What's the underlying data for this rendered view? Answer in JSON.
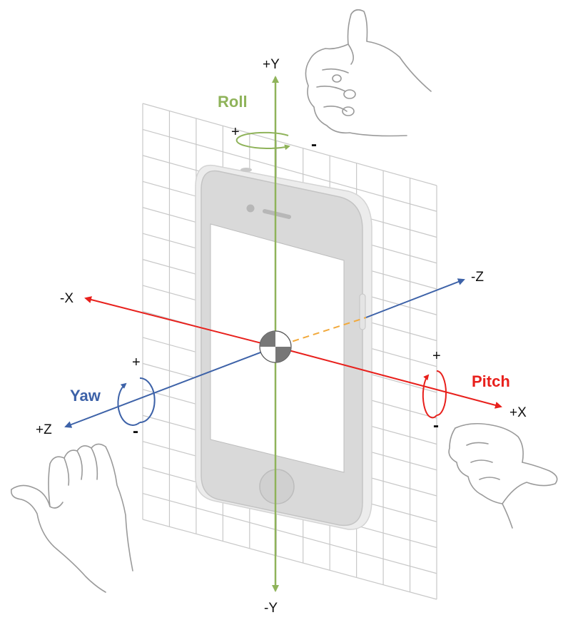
{
  "axes": {
    "pos_y": "+Y",
    "neg_y": "-Y",
    "pos_x": "+X",
    "neg_x": "-X",
    "pos_z": "+Z",
    "neg_z": "-Z"
  },
  "rotations": {
    "roll": {
      "label": "Roll",
      "plus": "+",
      "minus": "-",
      "color": "#8fb35a"
    },
    "pitch": {
      "label": "Pitch",
      "plus": "+",
      "minus": "-",
      "color": "#e8201c"
    },
    "yaw": {
      "label": "Yaw",
      "plus": "+",
      "minus": "-",
      "color": "#3d62a8"
    }
  },
  "colors": {
    "x_axis": "#e8201c",
    "y_axis": "#8fb35a",
    "z_axis": "#3d62a8",
    "z_hidden": "#f2a93b",
    "grid": "#c8c8c8",
    "device_body": "#d9d9d9",
    "device_screen": "#ffffff",
    "hand_outline": "#9a9a9a"
  },
  "icons": {
    "device": "iphone-icon",
    "hands": [
      "thumbs-up-hand-icon",
      "right-hand-icon",
      "left-hand-icon"
    ]
  }
}
